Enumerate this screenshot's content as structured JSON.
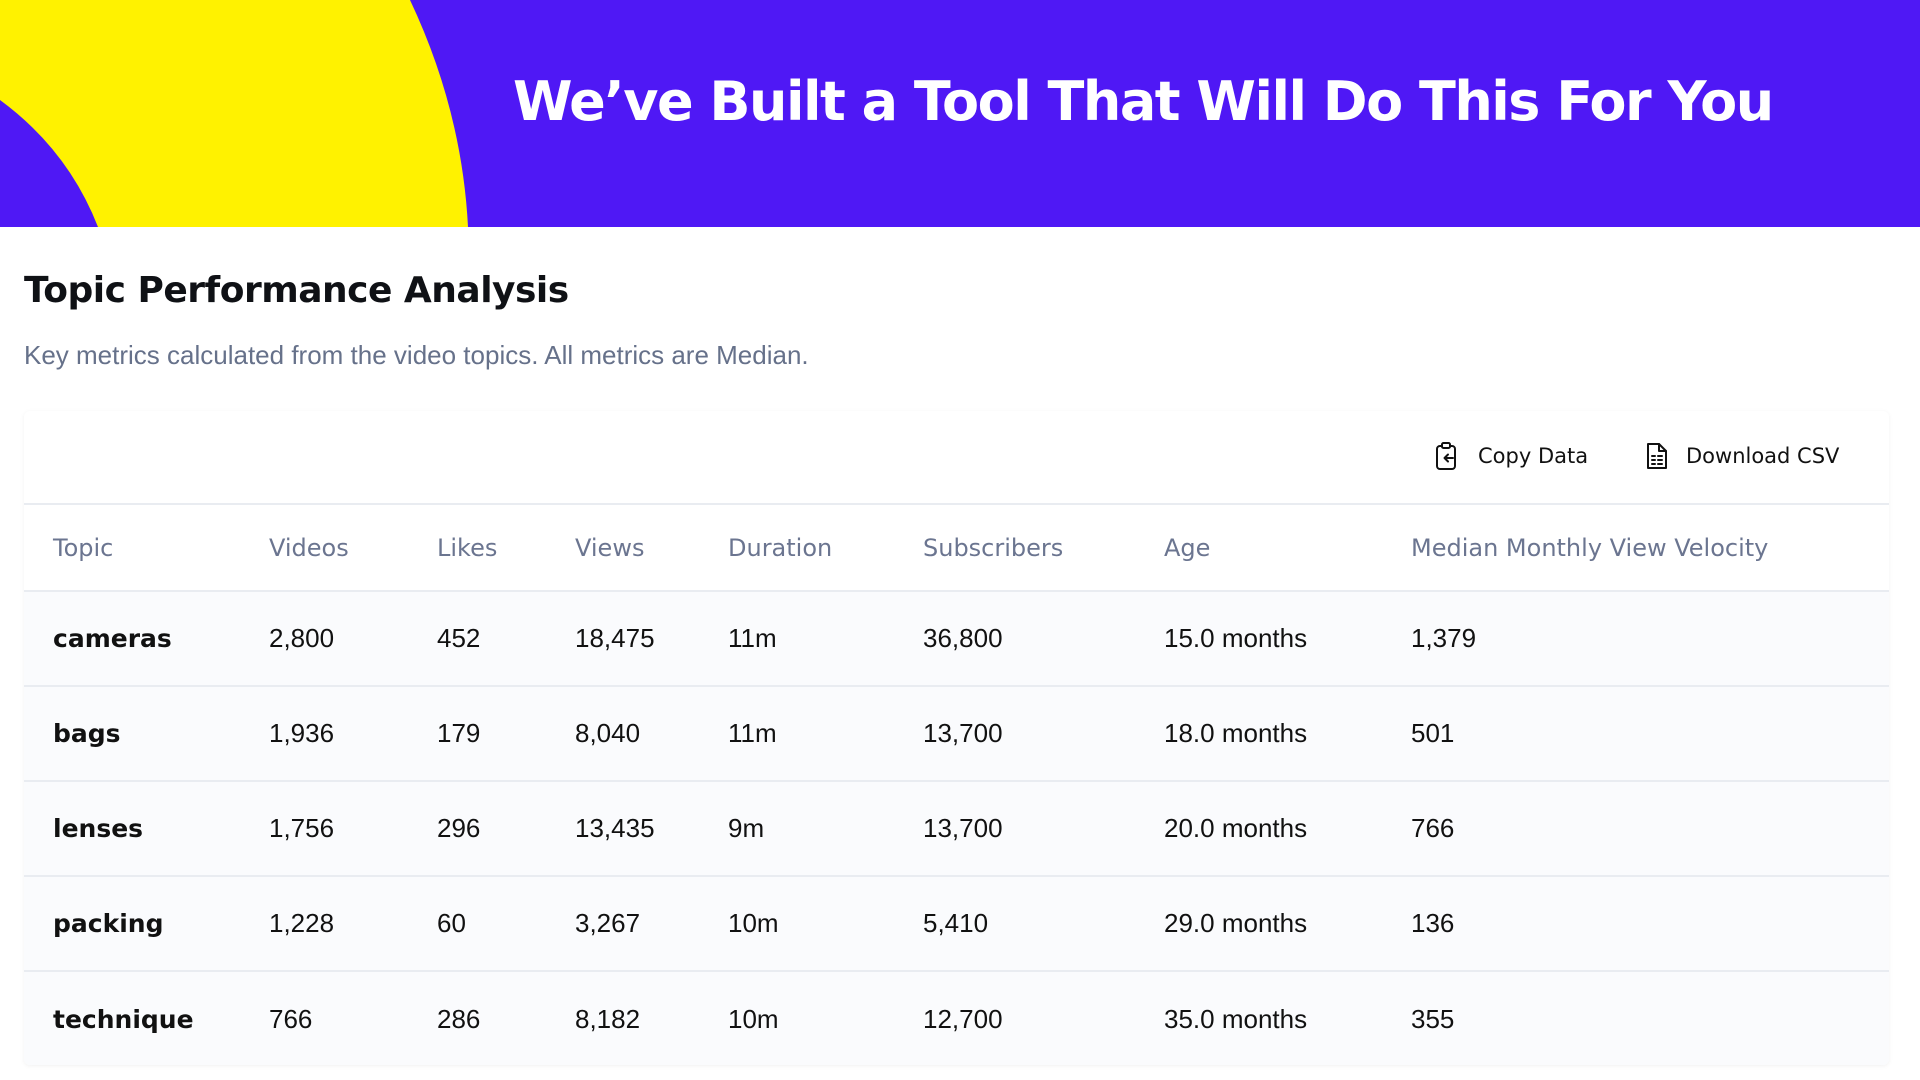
{
  "banner": {
    "title": "We’ve Built a Tool That Will Do This For You",
    "background_color": "#4f18f5",
    "accent_color": "#fff200"
  },
  "section": {
    "title": "Topic Performance Analysis",
    "subtitle": "Key metrics calculated from the video topics. All metrics are Median."
  },
  "toolbar": {
    "copy_label": "Copy Data",
    "copy_icon": "clipboard-icon",
    "download_label": "Download CSV",
    "download_icon": "file-spreadsheet-icon"
  },
  "table": {
    "headers": [
      "Topic",
      "Videos",
      "Likes",
      "Views",
      "Duration",
      "Subscribers",
      "Age",
      "Median Monthly View Velocity"
    ],
    "rows": [
      [
        "cameras",
        "2,800",
        "452",
        "18,475",
        "11m",
        "36,800",
        "15.0 months",
        "1,379"
      ],
      [
        "bags",
        "1,936",
        "179",
        "8,040",
        "11m",
        "13,700",
        "18.0 months",
        "501"
      ],
      [
        "lenses",
        "1,756",
        "296",
        "13,435",
        "9m",
        "13,700",
        "20.0 months",
        "766"
      ],
      [
        "packing",
        "1,228",
        "60",
        "3,267",
        "10m",
        "5,410",
        "29.0 months",
        "136"
      ],
      [
        "technique",
        "766",
        "286",
        "8,182",
        "10m",
        "12,700",
        "35.0 months",
        "355"
      ]
    ]
  }
}
